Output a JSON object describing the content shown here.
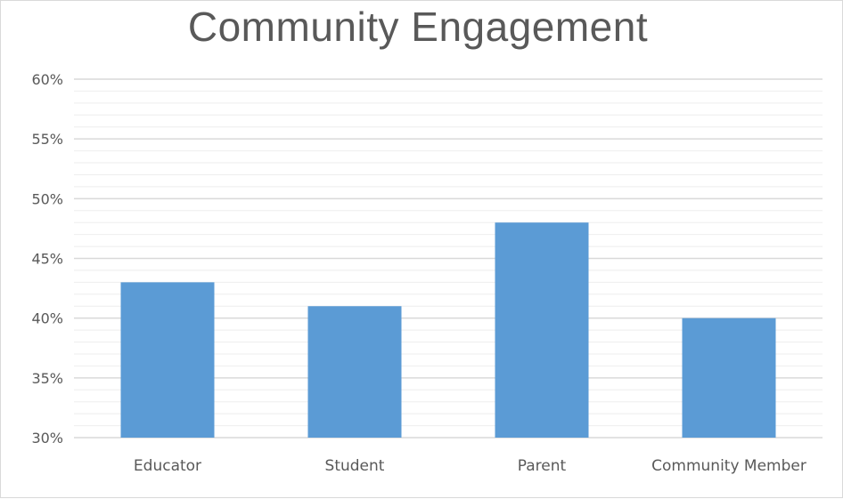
{
  "chart_data": {
    "type": "bar",
    "title": "Community Engagement",
    "categories": [
      "Educator",
      "Student",
      "Parent",
      "Community Member"
    ],
    "values": [
      43,
      41,
      48,
      40
    ],
    "ylim": [
      30,
      60
    ],
    "yticks": [
      "30%",
      "35%",
      "40%",
      "45%",
      "50%",
      "55%",
      "60%"
    ],
    "ytick_values": [
      30,
      35,
      40,
      45,
      50,
      55,
      60
    ],
    "minor_step": 1,
    "grid": true,
    "bar_color": "#5b9bd5",
    "gridline_color": "#d9d9d9",
    "minor_gridline_color": "#eeeeee"
  }
}
